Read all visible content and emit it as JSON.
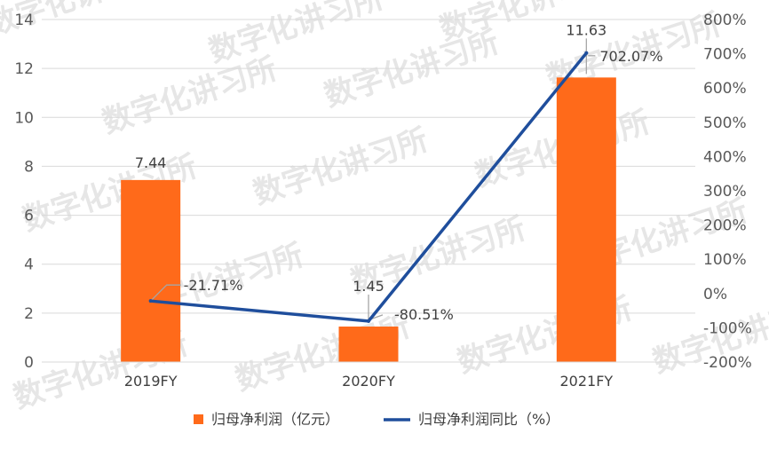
{
  "chart_data": {
    "type": "bar",
    "categories": [
      "2019FY",
      "2020FY",
      "2021FY"
    ],
    "series": [
      {
        "name": "归母净利润（亿元）",
        "type": "bar",
        "axis": "left",
        "color": "#ff6a1a",
        "values": [
          7.44,
          1.45,
          11.63
        ],
        "data_labels": [
          "7.44",
          "1.45",
          "11.63"
        ]
      },
      {
        "name": "归母净利润同比（%）",
        "type": "line",
        "axis": "right",
        "color": "#1f4e9c",
        "values": [
          -21.71,
          -80.51,
          702.07
        ],
        "data_labels": [
          "-21.71%",
          "-80.51%",
          "702.07%"
        ]
      }
    ],
    "y_left": {
      "min": 0,
      "max": 14,
      "ticks": [
        "0",
        "2",
        "4",
        "6",
        "8",
        "10",
        "12",
        "14"
      ]
    },
    "y_right": {
      "min": -200,
      "max": 800,
      "ticks": [
        "-200%",
        "-100%",
        "0%",
        "100%",
        "200%",
        "300%",
        "400%",
        "500%",
        "600%",
        "700%",
        "800%"
      ]
    },
    "grid": true,
    "legend_position": "bottom",
    "watermark": "数字化讲习所"
  }
}
